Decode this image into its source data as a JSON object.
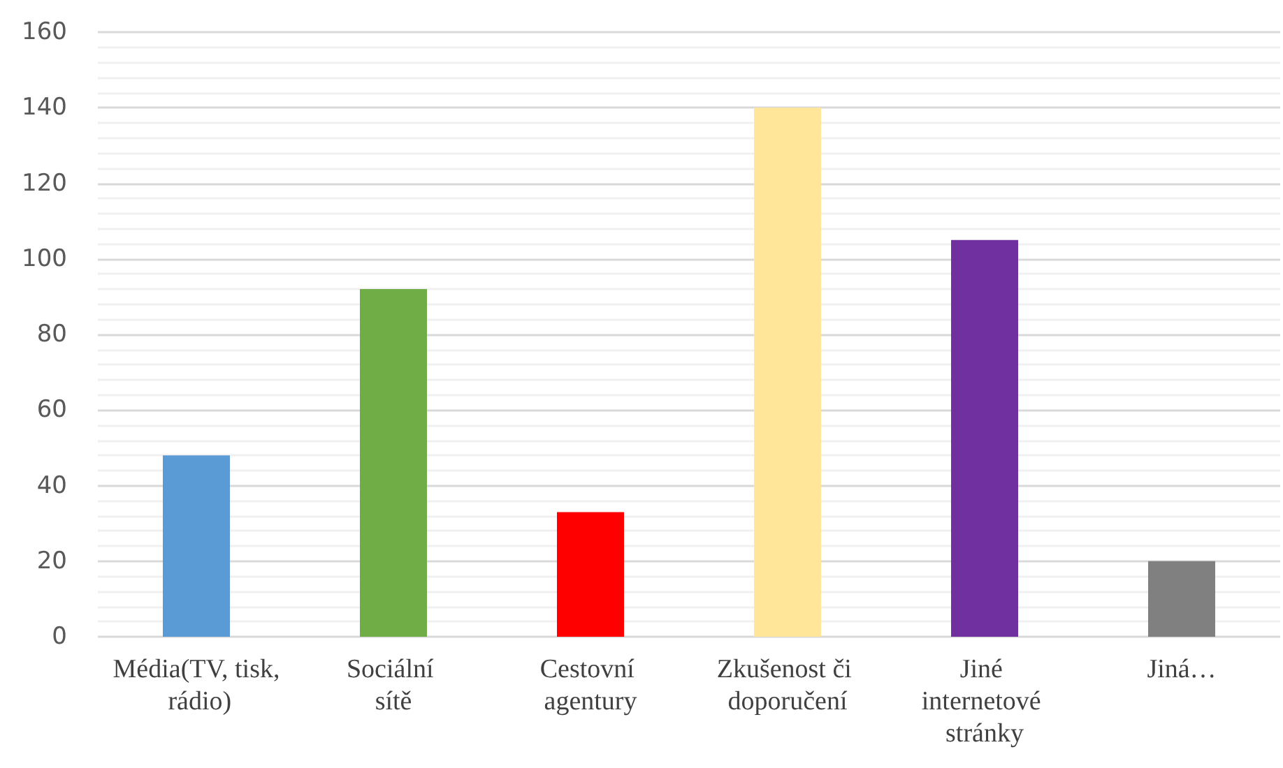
{
  "chart_data": {
    "type": "bar",
    "categories": [
      "Média(TV, tisk, rádio)",
      "Sociální sítě",
      "Cestovní agentury",
      "Zkušenost či doporučení",
      "Jiné internetové stránky",
      "Jiná…"
    ],
    "values": [
      48,
      92,
      33,
      140,
      105,
      20
    ],
    "colors": [
      "#5b9bd5",
      "#70ad47",
      "#ff0000",
      "#ffe699",
      "#7030a0",
      "#808080"
    ],
    "ylim": [
      0,
      160
    ],
    "yticks": [
      0,
      20,
      40,
      60,
      80,
      100,
      120,
      140,
      160
    ],
    "grid": "y"
  }
}
